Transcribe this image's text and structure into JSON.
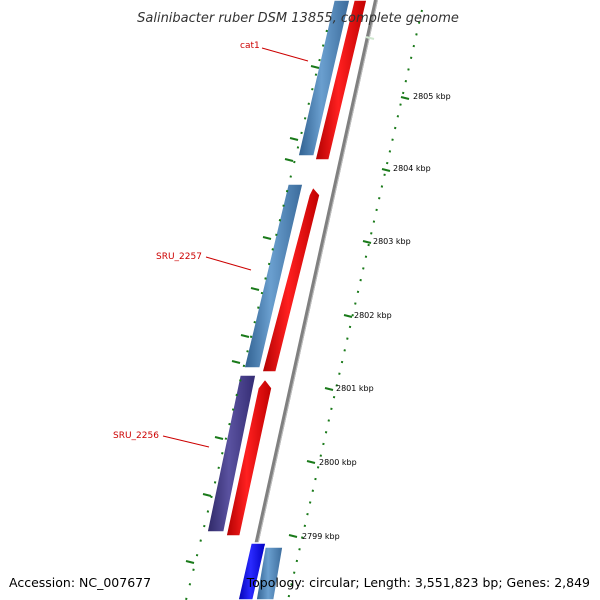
{
  "title": "Salinibacter ruber DSM 13855, complete genome",
  "footer": {
    "accession": "Accession: NC_007677",
    "summary": "Topology: circular; Length: 3,551,823 bp; Genes: 2,849"
  },
  "ticks": [
    "2805 kbp",
    "2804 kbp",
    "2803 kbp",
    "2802 kbp",
    "2801 kbp",
    "2800 kbp",
    "2799 kbp"
  ],
  "gene_labels": [
    "cat1",
    "SRU_2257",
    "SRU_2256"
  ],
  "colors": {
    "forward_cds": "#ff0000",
    "reverse_cds": "#4682b4",
    "reverse_cds_alt": "#483d8b",
    "reverse_cds_blue": "#0000ff",
    "backbone": "#808080",
    "gc_ticks": "#1a7a1a",
    "label_line": "#cc0000"
  }
}
